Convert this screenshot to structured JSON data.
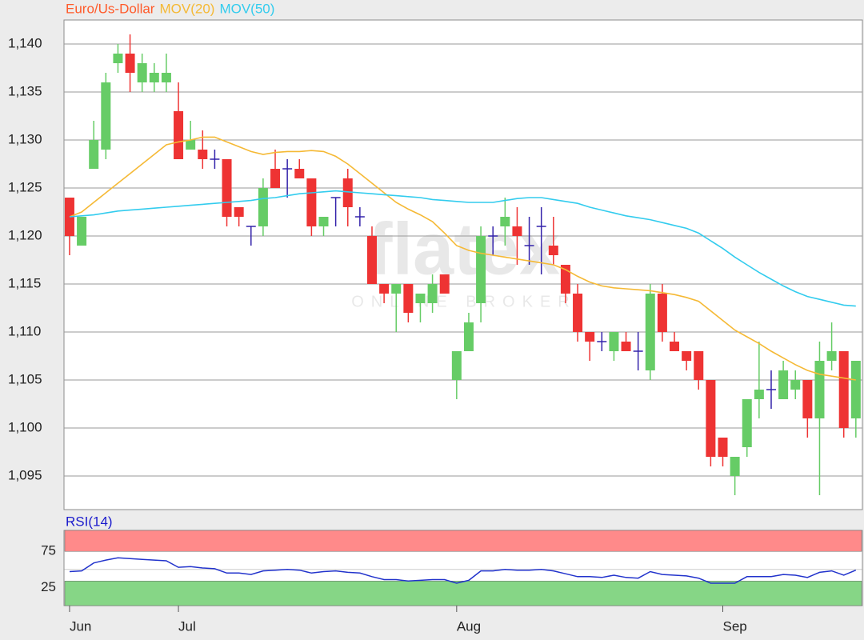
{
  "chart_data": [
    {
      "type": "candlestick",
      "title": "Euro/Us-Dollar",
      "title_color": "#ff5a2a",
      "up_color": "#66cc66",
      "down_color": "#ee3333",
      "doji_color": "#3322aa",
      "open": [
        1.124,
        1.119,
        1.127,
        1.129,
        1.138,
        1.139,
        1.136,
        1.136,
        1.136,
        1.133,
        1.129,
        1.129,
        1.128,
        1.128,
        1.123,
        1.121,
        1.121,
        1.127,
        1.127,
        1.127,
        1.126,
        1.121,
        1.124,
        1.126,
        1.122,
        1.12,
        1.115,
        1.114,
        1.115,
        1.113,
        1.113,
        1.116,
        1.105,
        1.108,
        1.113,
        1.12,
        1.121,
        1.121,
        1.119,
        1.121,
        1.119,
        1.117,
        1.114,
        1.11,
        1.109,
        1.108,
        1.109,
        1.108,
        1.106,
        1.114,
        1.109,
        1.108,
        1.108,
        1.105,
        1.099,
        1.095,
        1.098,
        1.103,
        1.104,
        1.103,
        1.104,
        1.105,
        1.101,
        1.107,
        1.108,
        1.101
      ],
      "high": [
        1.124,
        1.122,
        1.132,
        1.137,
        1.14,
        1.141,
        1.139,
        1.138,
        1.139,
        1.136,
        1.132,
        1.131,
        1.129,
        1.128,
        1.123,
        1.121,
        1.126,
        1.129,
        1.128,
        1.128,
        1.126,
        1.122,
        1.124,
        1.127,
        1.123,
        1.121,
        1.115,
        1.115,
        1.115,
        1.114,
        1.116,
        1.116,
        1.108,
        1.112,
        1.121,
        1.121,
        1.124,
        1.123,
        1.122,
        1.123,
        1.122,
        1.117,
        1.115,
        1.11,
        1.11,
        1.11,
        1.11,
        1.11,
        1.115,
        1.115,
        1.11,
        1.108,
        1.108,
        1.105,
        1.099,
        1.097,
        1.103,
        1.109,
        1.106,
        1.107,
        1.106,
        1.105,
        1.109,
        1.111,
        1.108,
        1.107
      ],
      "low": [
        1.118,
        1.119,
        1.127,
        1.128,
        1.137,
        1.135,
        1.135,
        1.135,
        1.135,
        1.128,
        1.129,
        1.127,
        1.127,
        1.121,
        1.121,
        1.119,
        1.12,
        1.125,
        1.124,
        1.126,
        1.12,
        1.12,
        1.121,
        1.121,
        1.121,
        1.115,
        1.113,
        1.11,
        1.111,
        1.111,
        1.112,
        1.114,
        1.103,
        1.108,
        1.111,
        1.118,
        1.119,
        1.117,
        1.117,
        1.116,
        1.117,
        1.113,
        1.109,
        1.107,
        1.108,
        1.107,
        1.108,
        1.106,
        1.105,
        1.109,
        1.108,
        1.106,
        1.104,
        1.096,
        1.096,
        1.093,
        1.097,
        1.101,
        1.102,
        1.103,
        1.103,
        1.099,
        1.093,
        1.106,
        1.099,
        1.099
      ],
      "close": [
        1.12,
        1.122,
        1.13,
        1.136,
        1.139,
        1.137,
        1.138,
        1.137,
        1.137,
        1.128,
        1.13,
        1.128,
        1.128,
        1.122,
        1.122,
        1.121,
        1.125,
        1.125,
        1.127,
        1.126,
        1.121,
        1.122,
        1.124,
        1.123,
        1.122,
        1.115,
        1.114,
        1.115,
        1.112,
        1.114,
        1.115,
        1.114,
        1.108,
        1.111,
        1.12,
        1.12,
        1.122,
        1.12,
        1.119,
        1.121,
        1.118,
        1.114,
        1.11,
        1.109,
        1.109,
        1.11,
        1.108,
        1.108,
        1.114,
        1.11,
        1.108,
        1.107,
        1.105,
        1.097,
        1.097,
        1.097,
        1.103,
        1.104,
        1.104,
        1.106,
        1.105,
        1.101,
        1.107,
        1.108,
        1.1,
        1.107
      ],
      "series": [
        {
          "name": "MOV(20)",
          "color": "#f5b935",
          "values": [
            1.122,
            1.1225,
            1.1235,
            1.1245,
            1.1255,
            1.1265,
            1.1275,
            1.1285,
            1.1295,
            1.1298,
            1.13,
            1.1303,
            1.1303,
            1.1298,
            1.1293,
            1.1288,
            1.1285,
            1.1287,
            1.1288,
            1.1288,
            1.1289,
            1.1288,
            1.1283,
            1.1275,
            1.1265,
            1.1255,
            1.1245,
            1.1235,
            1.1228,
            1.1222,
            1.1215,
            1.1203,
            1.119,
            1.1185,
            1.1182,
            1.118,
            1.1178,
            1.1176,
            1.1174,
            1.1172,
            1.117,
            1.1165,
            1.1158,
            1.1152,
            1.1148,
            1.1146,
            1.1145,
            1.1144,
            1.1143,
            1.1141,
            1.1139,
            1.1136,
            1.1132,
            1.1122,
            1.1112,
            1.1102,
            1.1095,
            1.1088,
            1.108,
            1.1073,
            1.1066,
            1.106,
            1.1056,
            1.1054,
            1.1052,
            1.105
          ]
        },
        {
          "name": "MOV(50)",
          "color": "#33ccee",
          "values": [
            1.122,
            1.1221,
            1.1222,
            1.1224,
            1.1226,
            1.1227,
            1.1228,
            1.1229,
            1.123,
            1.1231,
            1.1232,
            1.1233,
            1.1234,
            1.1235,
            1.1236,
            1.1237,
            1.1239,
            1.124,
            1.1242,
            1.1244,
            1.1245,
            1.1246,
            1.1247,
            1.1246,
            1.1245,
            1.1244,
            1.1243,
            1.1242,
            1.1241,
            1.124,
            1.1238,
            1.1237,
            1.1236,
            1.1235,
            1.1235,
            1.1235,
            1.1237,
            1.1239,
            1.124,
            1.124,
            1.1238,
            1.1236,
            1.1234,
            1.123,
            1.1227,
            1.1224,
            1.1221,
            1.1219,
            1.1217,
            1.1214,
            1.1211,
            1.1208,
            1.1203,
            1.1195,
            1.1187,
            1.1178,
            1.117,
            1.1162,
            1.1155,
            1.1148,
            1.1142,
            1.1137,
            1.1134,
            1.1131,
            1.1128,
            1.1127
          ]
        }
      ],
      "ylim": [
        1.0915,
        1.1425
      ],
      "yticks": [
        {
          "value": 1.095,
          "label": "1,095"
        },
        {
          "value": 1.1,
          "label": "1,100"
        },
        {
          "value": 1.105,
          "label": "1,105"
        },
        {
          "value": 1.11,
          "label": "1,110"
        },
        {
          "value": 1.115,
          "label": "1,115"
        },
        {
          "value": 1.12,
          "label": "1,120"
        },
        {
          "value": 1.125,
          "label": "1,125"
        },
        {
          "value": 1.13,
          "label": "1,130"
        },
        {
          "value": 1.135,
          "label": "1,135"
        },
        {
          "value": 1.14,
          "label": "1,140"
        }
      ],
      "grid": true,
      "watermark": [
        "flatex",
        "ONLINE BROKER"
      ]
    },
    {
      "type": "line",
      "title": "RSI(14)",
      "title_color": "#1a1acc",
      "color": "#2233cc",
      "categories": [
        "Jun",
        null,
        null,
        null,
        null,
        null,
        null,
        null,
        null,
        "Jul",
        null,
        null,
        null,
        null,
        null,
        null,
        null,
        null,
        null,
        null,
        null,
        null,
        null,
        null,
        null,
        null,
        null,
        null,
        null,
        null,
        null,
        null,
        "Aug",
        null,
        null,
        null,
        null,
        null,
        null,
        null,
        null,
        null,
        null,
        null,
        null,
        null,
        null,
        null,
        null,
        null,
        null,
        null,
        null,
        null,
        "Sep",
        null,
        null,
        null,
        null,
        null,
        null,
        null,
        null,
        null,
        null,
        null
      ],
      "values": [
        47,
        48,
        59,
        63,
        66,
        65,
        64,
        63,
        62,
        53,
        54,
        52,
        51,
        45,
        45,
        43,
        48,
        49,
        50,
        49,
        45,
        47,
        48,
        46,
        45,
        40,
        36,
        36,
        34,
        35,
        36,
        36,
        31,
        35,
        48,
        48,
        50,
        49,
        49,
        50,
        48,
        44,
        40,
        40,
        39,
        42,
        39,
        38,
        47,
        43,
        42,
        41,
        38,
        31,
        31,
        31,
        40,
        40,
        40,
        43,
        42,
        39,
        46,
        48,
        42,
        49
      ],
      "ylim": [
        0,
        104
      ],
      "yticks": [
        25,
        75
      ],
      "bands": [
        {
          "from": 75,
          "to": 104,
          "color": "#ff8a8a"
        },
        {
          "from": 0,
          "to": 34,
          "color": "#86d686"
        }
      ]
    }
  ]
}
